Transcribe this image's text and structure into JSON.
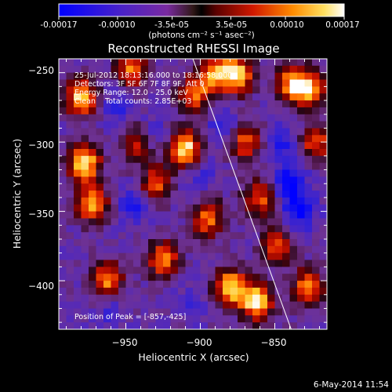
{
  "colorbar": {
    "ticks": [
      "-0.00017",
      "-0.00010",
      "-3.5e-05",
      "3.5e-05",
      "0.00010",
      "0.00017"
    ],
    "tick_values": [
      -0.00017,
      -0.0001,
      -3.5e-05,
      3.5e-05,
      0.0001,
      0.00017
    ],
    "range": [
      -0.00017,
      0.00017
    ],
    "units": "(photons cm⁻² s⁻¹ asec⁻²)"
  },
  "chart_data": {
    "type": "heatmap",
    "title": "Reconstructed RHESSI Image",
    "xlabel": "Heliocentric X (arcsec)",
    "ylabel": "Heliocentric Y (arcsec)",
    "xlim": [
      -995,
      -815
    ],
    "ylim": [
      -435,
      -240
    ],
    "x_ticks": [
      -950,
      -900,
      -850
    ],
    "x_tick_labels": [
      "−950",
      "−900",
      "−850"
    ],
    "y_ticks": [
      -250,
      -300,
      -350,
      -400
    ],
    "y_tick_labels": [
      "−250",
      "−300",
      "−350",
      "−400"
    ],
    "annotations": [
      "25-Jul-2012 18:13:16.000 to 18:16:58.000",
      "Detectors: 3F 5F 6F 7F 8F 9F, Att 0",
      "Energy Range: 12.0 - 25.0 keV",
      "Clean    Total counts: 2.85E+03"
    ],
    "peak_label": "Position of Peak = [-857,-425]",
    "limb_line": [
      [
        -905,
        -240
      ],
      [
        -839,
        -435
      ]
    ],
    "colormap": [
      "#0000ff",
      "#3a1fd8",
      "#6a2cb8",
      "#8a2a90",
      "#2a0000",
      "#b00000",
      "#ff3000",
      "#ff9000",
      "#ffe060",
      "#ffffff"
    ],
    "hot_spots": [
      {
        "x": -980,
        "y": -268,
        "v": 0.85
      },
      {
        "x": -978,
        "y": -315,
        "v": 1.0
      },
      {
        "x": -972,
        "y": -345,
        "v": 0.8
      },
      {
        "x": -962,
        "y": -400,
        "v": 0.7
      },
      {
        "x": -946,
        "y": -248,
        "v": 0.6
      },
      {
        "x": -942,
        "y": -300,
        "v": 0.55
      },
      {
        "x": -930,
        "y": -330,
        "v": 0.5
      },
      {
        "x": -925,
        "y": -385,
        "v": 0.65
      },
      {
        "x": -910,
        "y": -305,
        "v": 0.95
      },
      {
        "x": -904,
        "y": -265,
        "v": 0.6
      },
      {
        "x": -895,
        "y": -355,
        "v": 0.6
      },
      {
        "x": -890,
        "y": -250,
        "v": 0.7
      },
      {
        "x": -875,
        "y": -252,
        "v": 0.85
      },
      {
        "x": -880,
        "y": -405,
        "v": 0.9
      },
      {
        "x": -862,
        "y": -415,
        "v": 1.0
      },
      {
        "x": -870,
        "y": -300,
        "v": 0.5
      },
      {
        "x": -860,
        "y": -340,
        "v": 0.5
      },
      {
        "x": -838,
        "y": -258,
        "v": 0.75
      },
      {
        "x": -826,
        "y": -262,
        "v": 0.6
      },
      {
        "x": -822,
        "y": -300,
        "v": 0.5
      },
      {
        "x": -828,
        "y": -405,
        "v": 0.65
      },
      {
        "x": -848,
        "y": -375,
        "v": 0.45
      }
    ],
    "cold_spots": [
      {
        "x": -955,
        "y": -275,
        "v": -0.55
      },
      {
        "x": -945,
        "y": -345,
        "v": -0.7
      },
      {
        "x": -935,
        "y": -295,
        "v": -0.6
      },
      {
        "x": -900,
        "y": -325,
        "v": -0.5
      },
      {
        "x": -885,
        "y": -290,
        "v": -0.55
      },
      {
        "x": -840,
        "y": -330,
        "v": -0.9
      },
      {
        "x": -833,
        "y": -350,
        "v": -0.8
      },
      {
        "x": -845,
        "y": -300,
        "v": -0.6
      },
      {
        "x": -960,
        "y": -420,
        "v": -0.5
      },
      {
        "x": -905,
        "y": -415,
        "v": -0.45
      }
    ]
  },
  "footer": {
    "date": "6-May-2014 11:54"
  }
}
